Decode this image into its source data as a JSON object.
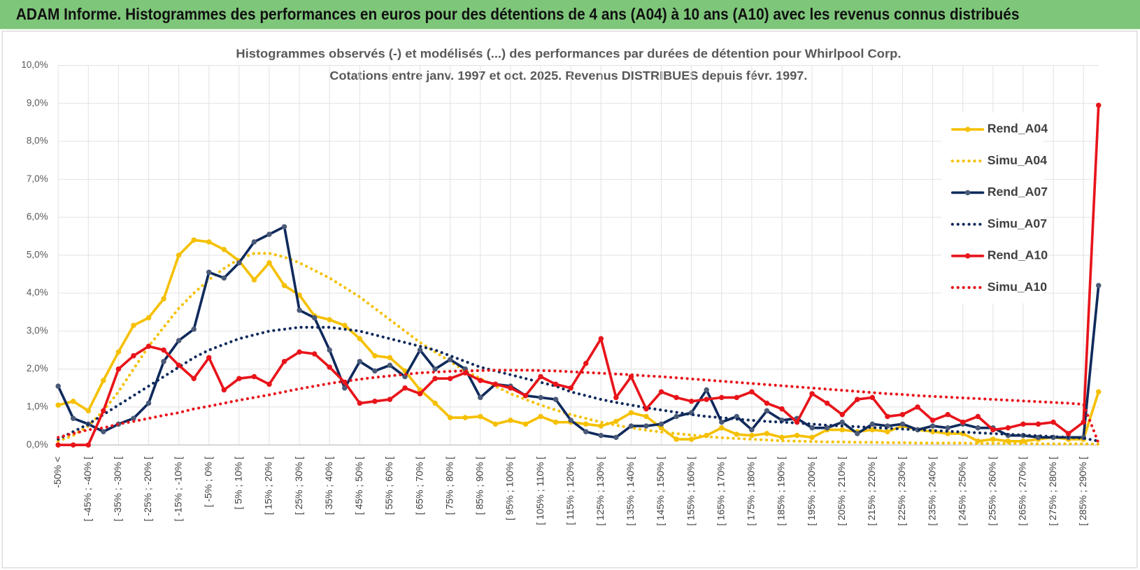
{
  "header": {
    "title": "ADAM Informe. Histogrammes des performances en euros pour des détentions de 4 ans (A04) à 10 ans (A10) avec les revenus connus distribués"
  },
  "chart_data": {
    "type": "line",
    "title": [
      "Histogrammes observés (-) et modélisés (...) des performances par durées de détention pour Whirlpool Corp.",
      "Cotations entre janv. 1997 et oct. 2025.  Revenus DISTRIBUES depuis févr. 1997."
    ],
    "categories": [
      "-50% <",
      null,
      "[ -45% ; -40% [",
      null,
      "[ -35% ; -30% [",
      null,
      "[ -25% ; -20% [",
      null,
      "[ -15% ; -10% [",
      null,
      "[ -5% ; 0% [",
      null,
      "[ 5% ; 10% [",
      null,
      "[ 15% ; 20% [",
      null,
      "[ 25% ; 30% [",
      null,
      "[ 35% ; 40% [",
      null,
      "[ 45% ; 50% [",
      null,
      "[ 55% ; 60% [",
      null,
      "[ 65% ; 70% [",
      null,
      "[ 75% ; 80% [",
      null,
      "[ 85% ; 90% [",
      null,
      "[ 95% ; 100% [",
      null,
      "[ 105% ; 110% [",
      null,
      "[ 115% ; 120% [",
      null,
      "[ 125% ; 130% [",
      null,
      "[ 135% ; 140% [",
      null,
      "[ 145% ; 150% [",
      null,
      "[ 155% ; 160% [",
      null,
      "[ 165% ; 170% [",
      null,
      "[ 175% ; 180% [",
      null,
      "[ 185% ; 190% [",
      null,
      "[ 195% ; 200% [",
      null,
      "[ 205% ; 210% [",
      null,
      "[ 215% ; 220% [",
      null,
      "[ 225% ; 230% [",
      null,
      "[ 235% ; 240% [",
      null,
      "[ 245% ; 250% [",
      null,
      "[ 255% ; 260% [",
      null,
      "[ 265% ; 270% [",
      null,
      "[ 275% ; 280% [",
      null,
      "[ 285% ; 290% [",
      null
    ],
    "series": [
      {
        "name": "Rend_A04",
        "color": "#f5c000",
        "dash": "solid",
        "marker": true,
        "values": [
          1.05,
          1.15,
          0.9,
          1.7,
          2.45,
          3.15,
          3.35,
          3.85,
          5.0,
          5.4,
          5.35,
          5.15,
          4.85,
          4.35,
          4.8,
          4.2,
          3.95,
          3.4,
          3.3,
          3.15,
          2.8,
          2.35,
          2.3,
          1.95,
          1.45,
          1.1,
          0.72,
          0.72,
          0.75,
          0.55,
          0.65,
          0.55,
          0.75,
          0.6,
          0.6,
          0.55,
          0.5,
          0.62,
          0.85,
          0.75,
          0.45,
          0.15,
          0.15,
          0.25,
          0.45,
          0.28,
          0.25,
          0.3,
          0.2,
          0.25,
          0.2,
          0.4,
          0.4,
          0.35,
          0.4,
          0.35,
          0.5,
          0.4,
          0.35,
          0.3,
          0.3,
          0.1,
          0.15,
          0.1,
          0.1,
          0.15,
          0.2,
          0.15,
          0.15,
          1.4
        ]
      },
      {
        "name": "Simu_A04",
        "color": "#f5c000",
        "dash": "dotted",
        "marker": false,
        "values": [
          0.1,
          0.25,
          0.5,
          0.9,
          1.4,
          2.0,
          2.6,
          3.1,
          3.6,
          4.0,
          4.35,
          4.65,
          4.9,
          5.05,
          5.05,
          4.95,
          4.8,
          4.6,
          4.4,
          4.15,
          3.9,
          3.6,
          3.3,
          3.0,
          2.7,
          2.45,
          2.2,
          1.95,
          1.75,
          1.55,
          1.35,
          1.2,
          1.05,
          0.92,
          0.8,
          0.7,
          0.6,
          0.52,
          0.45,
          0.39,
          0.34,
          0.3,
          0.26,
          0.22,
          0.19,
          0.17,
          0.15,
          0.13,
          0.11,
          0.1,
          0.09,
          0.08,
          0.08,
          0.07,
          0.07,
          0.06,
          0.06,
          0.05,
          0.05,
          0.05,
          0.05,
          0.04,
          0.04,
          0.04,
          0.04,
          0.03,
          0.03,
          0.03,
          0.03,
          0.02
        ]
      },
      {
        "name": "Rend_A07",
        "color": "#0f2a5c",
        "dash": "solid",
        "marker": true,
        "values": [
          1.55,
          0.7,
          0.55,
          0.35,
          0.55,
          0.7,
          1.1,
          2.2,
          2.75,
          3.05,
          4.55,
          4.4,
          4.8,
          5.35,
          5.55,
          5.75,
          3.55,
          3.35,
          2.5,
          1.5,
          2.2,
          1.95,
          2.1,
          1.8,
          2.5,
          2.0,
          2.25,
          2.0,
          1.25,
          1.6,
          1.55,
          1.3,
          1.25,
          1.2,
          0.65,
          0.35,
          0.25,
          0.2,
          0.5,
          0.5,
          0.55,
          0.75,
          0.85,
          1.45,
          0.6,
          0.75,
          0.4,
          0.9,
          0.65,
          0.7,
          0.45,
          0.45,
          0.6,
          0.3,
          0.55,
          0.5,
          0.55,
          0.4,
          0.5,
          0.45,
          0.55,
          0.45,
          0.45,
          0.25,
          0.25,
          0.2,
          0.2,
          0.2,
          0.2,
          4.2
        ]
      },
      {
        "name": "Simu_A07",
        "color": "#0f2a5c",
        "dash": "dotted",
        "marker": false,
        "values": [
          0.15,
          0.35,
          0.55,
          0.8,
          1.05,
          1.3,
          1.55,
          1.8,
          2.05,
          2.3,
          2.5,
          2.65,
          2.8,
          2.9,
          3.0,
          3.05,
          3.1,
          3.1,
          3.1,
          3.05,
          3.0,
          2.9,
          2.8,
          2.7,
          2.6,
          2.5,
          2.35,
          2.2,
          2.05,
          1.95,
          1.85,
          1.75,
          1.65,
          1.55,
          1.4,
          1.3,
          1.2,
          1.12,
          1.05,
          0.98,
          0.92,
          0.86,
          0.8,
          0.75,
          0.72,
          0.68,
          0.65,
          0.62,
          0.6,
          0.58,
          0.55,
          0.52,
          0.5,
          0.48,
          0.46,
          0.44,
          0.42,
          0.4,
          0.38,
          0.36,
          0.34,
          0.32,
          0.3,
          0.28,
          0.26,
          0.24,
          0.22,
          0.2,
          0.18,
          0.1
        ]
      },
      {
        "name": "Rend_A10",
        "color": "#e8141a",
        "dash": "solid",
        "marker": true,
        "values": [
          0,
          0,
          0,
          0.9,
          2.0,
          2.35,
          2.6,
          2.5,
          2.1,
          1.75,
          2.3,
          1.45,
          1.75,
          1.8,
          1.6,
          2.2,
          2.45,
          2.4,
          2.05,
          1.65,
          1.1,
          1.15,
          1.2,
          1.5,
          1.35,
          1.75,
          1.75,
          1.9,
          1.7,
          1.6,
          1.5,
          1.3,
          1.8,
          1.6,
          1.5,
          2.15,
          2.8,
          1.25,
          1.8,
          0.95,
          1.4,
          1.25,
          1.15,
          1.2,
          1.25,
          1.25,
          1.4,
          1.1,
          0.95,
          0.6,
          1.35,
          1.1,
          0.8,
          1.2,
          1.25,
          0.75,
          0.8,
          1.0,
          0.65,
          0.8,
          0.6,
          0.75,
          0.4,
          0.45,
          0.55,
          0.55,
          0.6,
          0.3,
          0.6,
          8.95
        ]
      },
      {
        "name": "Simu_A10",
        "color": "#e8141a",
        "dash": "dotted",
        "marker": false,
        "values": [
          0.2,
          0.3,
          0.4,
          0.45,
          0.55,
          0.62,
          0.7,
          0.78,
          0.85,
          0.95,
          1.02,
          1.1,
          1.18,
          1.25,
          1.32,
          1.4,
          1.48,
          1.55,
          1.62,
          1.68,
          1.73,
          1.78,
          1.82,
          1.86,
          1.9,
          1.92,
          1.94,
          1.95,
          1.96,
          1.97,
          1.97,
          1.97,
          1.96,
          1.95,
          1.93,
          1.91,
          1.89,
          1.87,
          1.85,
          1.82,
          1.8,
          1.77,
          1.74,
          1.71,
          1.68,
          1.65,
          1.62,
          1.59,
          1.56,
          1.53,
          1.5,
          1.47,
          1.44,
          1.41,
          1.38,
          1.35,
          1.33,
          1.3,
          1.28,
          1.26,
          1.24,
          1.22,
          1.2,
          1.18,
          1.16,
          1.14,
          1.12,
          1.1,
          1.07,
          0.05
        ]
      }
    ],
    "ylim": [
      0,
      10
    ],
    "yticks": [
      {
        "value": 0,
        "label": "0,0%"
      },
      {
        "value": 1,
        "label": "1,0%"
      },
      {
        "value": 2,
        "label": "2,0%"
      },
      {
        "value": 3,
        "label": "3,0%"
      },
      {
        "value": 4,
        "label": "4,0%"
      },
      {
        "value": 5,
        "label": "5,0%"
      },
      {
        "value": 6,
        "label": "6,0%"
      },
      {
        "value": 7,
        "label": "7,0%"
      },
      {
        "value": 8,
        "label": "8,0%"
      },
      {
        "value": 9,
        "label": "9,0%"
      },
      {
        "value": 10,
        "label": "10,0%"
      }
    ],
    "grid": true,
    "legend": "right"
  }
}
